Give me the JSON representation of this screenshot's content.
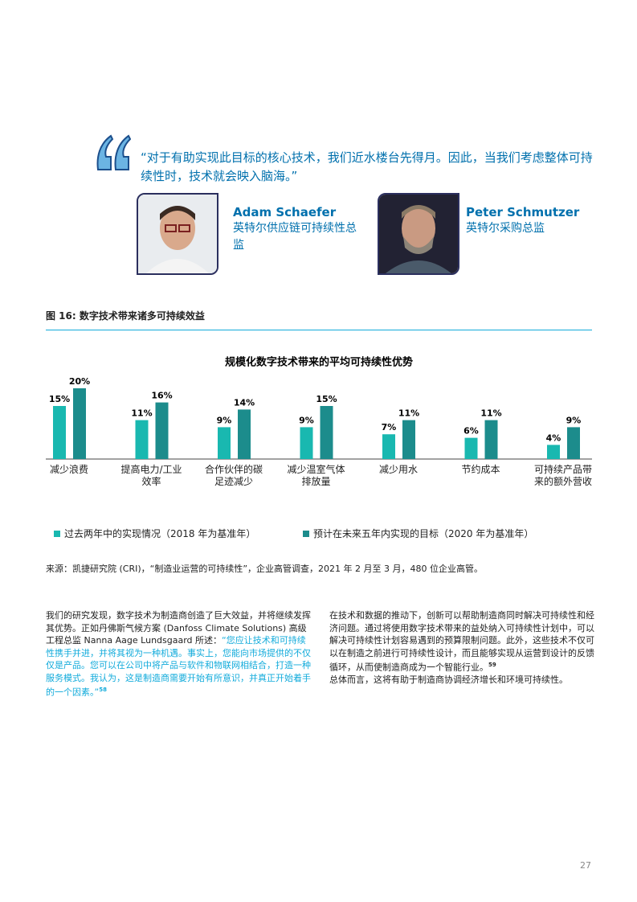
{
  "quote": "“对于有助实现此目标的核心技术，我们近水楼台先得月。因此，当我们考虑整体可持续性时，技术就会映入脑海。”",
  "people": [
    {
      "name": "Adam Schaefer",
      "role": "英特尔供应链可持续性总监"
    },
    {
      "name": "Peter Schmutzer",
      "role": "英特尔采购总监"
    }
  ],
  "figure_title": "图 16: 数字技术带来诸多可持续效益",
  "chart_data": {
    "type": "bar",
    "title": "规模化数字技术带来的平均可持续性优势",
    "categories": [
      "减少浪费",
      "提高电力/工业效率",
      "合作伙伴的碳足迹减少",
      "减少温室气体排放量",
      "减少用水",
      "节约成本",
      "可持续产品带来的额外营收"
    ],
    "series": [
      {
        "name": "过去两年中的实现情况（2018 年为基准年）",
        "color": "#19b8b0",
        "values": [
          15,
          11,
          9,
          9,
          7,
          6,
          4
        ],
        "value_labels": [
          "15%",
          "11%",
          "9%",
          "9%",
          "7%",
          "6%",
          "4%"
        ]
      },
      {
        "name": "预计在未来五年内实现的目标（2020 年为基准年）",
        "color": "#1c8c8c",
        "values": [
          20,
          16,
          14,
          15,
          11,
          11,
          9
        ],
        "value_labels": [
          "20%",
          "16%",
          "14%",
          "15%",
          "11%",
          "11%",
          "9%"
        ]
      }
    ]
  },
  "source": "来源：凯捷研究院 (CRI)，“制造业运营的可持续性”，企业高管调查，2021 年 2 月至 3 月，480 位企业高管。",
  "body": {
    "left": {
      "text": "我们的研究发现，数字技术为制造商创造了巨大效益，并将继续发挥其优势。正如丹佛斯气候方案 (Danfoss Climate Solutions) 高级工程总监 Nanna Aage Lundsgaard 所述：",
      "quote": "“您应让技术和可持续性携手并进，并将其视为一种机遇。事实上，您能向市场提供的不仅仅是产品。您可以在公司中将产品与软件和物联网相结合，打造一种服务模式。我认为，这是制造商需要开始有所意识，并真正开始着手的一个因素。”",
      "note": "58"
    },
    "right": {
      "text": "在技术和数据的推动下，创新可以帮助制造商同时解决可持续性和经济问题。通过将使用数字技术带来的益处纳入可持续性计划中，可以解决可持续性计划容易遇到的预算限制问题。此外，这些技术不仅可以在制造之前进行可持续性设计，而且能够实现从运营到设计的反馈循环，从而使制造商成为一个智能行业。",
      "note": "59",
      "text2": "总体而言，这将有助于制造商协调经济增长和环境可持续性。"
    }
  },
  "page_number": "27"
}
